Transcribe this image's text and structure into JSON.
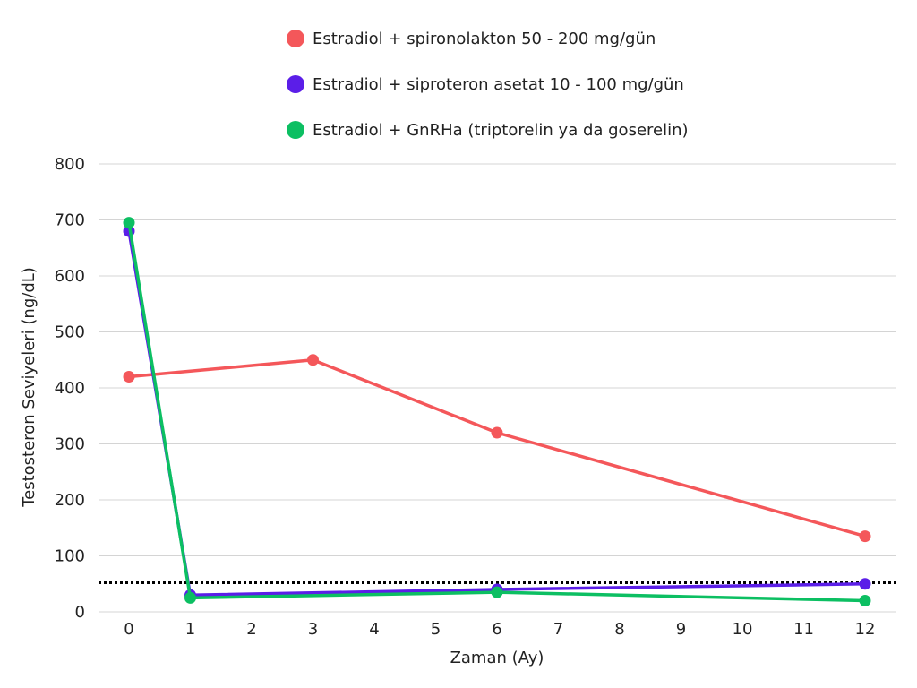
{
  "chart_data": {
    "type": "line",
    "xlabel": "Zaman (Ay)",
    "ylabel": "Testosteron Seviyeleri (ng/dL)",
    "xlim": [
      0,
      12
    ],
    "ylim": [
      0,
      800
    ],
    "x_ticks": [
      0,
      1,
      2,
      3,
      4,
      5,
      6,
      7,
      8,
      9,
      10,
      11,
      12
    ],
    "y_ticks": [
      0,
      100,
      200,
      300,
      400,
      500,
      600,
      700,
      800
    ],
    "grid": "horizontal",
    "legend_position": "top",
    "reference_line": {
      "y": 52,
      "style": "dotted",
      "color": "#000000"
    },
    "series": [
      {
        "name": "Estradiol + spironolakton 50 - 200 mg/gün",
        "color": "#f4575a",
        "x": [
          0,
          3,
          6,
          12
        ],
        "y": [
          420,
          450,
          320,
          135
        ]
      },
      {
        "name": "Estradiol + siproteron asetat 10 - 100 mg/gün",
        "color": "#5b1ee8",
        "x": [
          0,
          1,
          6,
          12
        ],
        "y": [
          680,
          30,
          40,
          50
        ]
      },
      {
        "name": "Estradiol + GnRHa (triptorelin ya da goserelin)",
        "color": "#0cbf62",
        "x": [
          0,
          1,
          6,
          12
        ],
        "y": [
          695,
          25,
          35,
          20
        ]
      }
    ]
  }
}
